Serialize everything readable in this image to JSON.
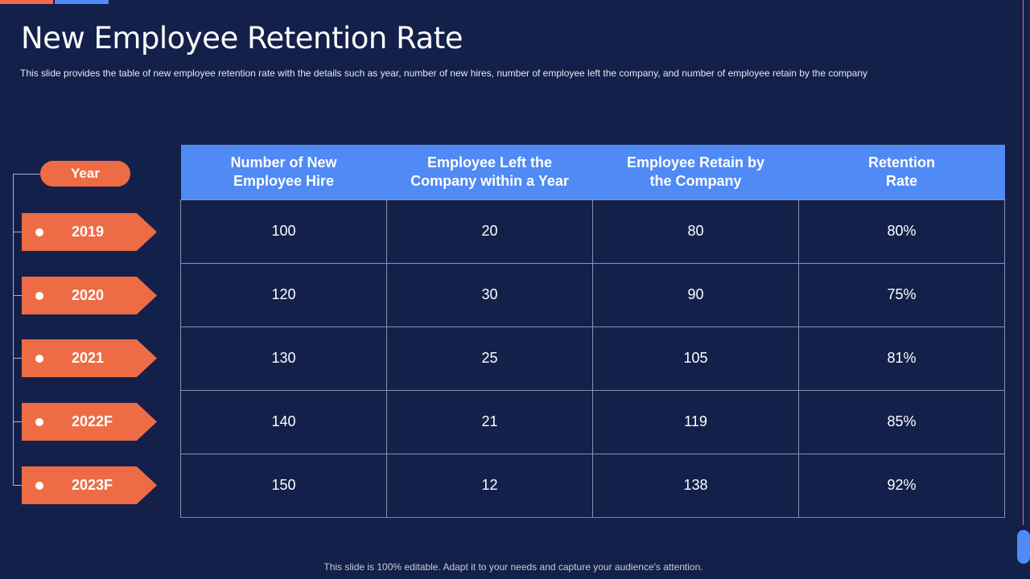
{
  "title": "New Employee Retention Rate",
  "subtitle": "This slide provides  the table of new employee retention rate with the details such as year, number of new hires, number of employee left the company, and number of employee retain by the company",
  "year_header": "Year",
  "columns": [
    "Number of New Employee Hire",
    "Employee Left the Company within a Year",
    "Employee Retain by the Company",
    "Retention Rate"
  ],
  "rows": [
    {
      "year": "2019",
      "hires": "100",
      "left": "20",
      "retained": "80",
      "rate": "80%"
    },
    {
      "year": "2020",
      "hires": "120",
      "left": "30",
      "retained": "90",
      "rate": "75%"
    },
    {
      "year": "2021",
      "hires": "130",
      "left": "25",
      "retained": "105",
      "rate": "81%"
    },
    {
      "year": "2022F",
      "hires": "140",
      "left": "21",
      "retained": "119",
      "rate": "85%"
    },
    {
      "year": "2023F",
      "hires": "150",
      "left": "12",
      "retained": "138",
      "rate": "92%"
    }
  ],
  "footer": "This slide is 100% editable. Adapt it to your needs and capture your audience's attention.",
  "colors": {
    "background": "#13204a",
    "accent_orange": "#ee6c45",
    "accent_blue": "#4f8af5"
  }
}
